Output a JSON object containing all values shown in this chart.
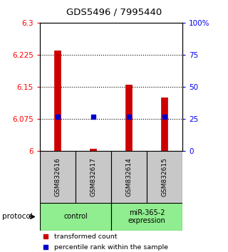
{
  "title": "GDS5496 / 7995440",
  "samples": [
    "GSM832616",
    "GSM832617",
    "GSM832614",
    "GSM832615"
  ],
  "transformed_counts": [
    6.235,
    6.005,
    6.155,
    6.125
  ],
  "percentile_ranks": [
    27,
    27,
    27,
    27
  ],
  "ylim_left": [
    6.0,
    6.3
  ],
  "ylim_right": [
    0,
    100
  ],
  "yticks_left": [
    6.0,
    6.075,
    6.15,
    6.225,
    6.3
  ],
  "ytick_labels_left": [
    "6",
    "6.075",
    "6.15",
    "6.225",
    "6.3"
  ],
  "yticks_right": [
    0,
    25,
    50,
    75,
    100
  ],
  "ytick_labels_right": [
    "0",
    "25",
    "50",
    "75",
    "100%"
  ],
  "hlines": [
    6.075,
    6.15,
    6.225
  ],
  "bar_color": "#CC0000",
  "dot_color": "#0000CC",
  "bg_color": "#FFFFFF",
  "sample_box_color": "#C8C8C8",
  "group_color": "#90EE90",
  "legend_red_label": "transformed count",
  "legend_blue_label": "percentile rank within the sample"
}
